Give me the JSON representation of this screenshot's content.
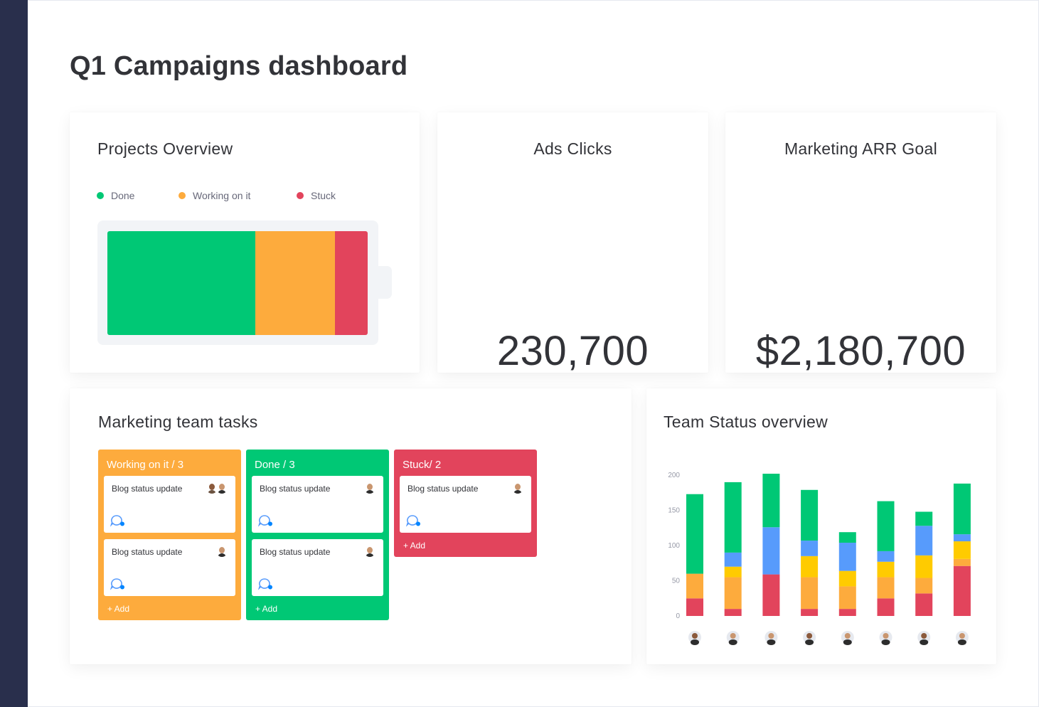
{
  "page": {
    "title": "Q1 Campaigns dashboard"
  },
  "projects_overview": {
    "title": "Projects Overview",
    "legend": [
      {
        "label": "Done",
        "color": "#00c875"
      },
      {
        "label": "Working on it",
        "color": "#fdab3d"
      },
      {
        "label": "Stuck",
        "color": "#e2445c"
      }
    ],
    "battery_shares": [
      {
        "status": "Done",
        "share": 0.567,
        "color": "#00c875"
      },
      {
        "status": "Working on it",
        "share": 0.306,
        "color": "#fdab3d"
      },
      {
        "status": "Stuck",
        "share": 0.127,
        "color": "#e2445c"
      }
    ]
  },
  "ads_clicks": {
    "title": "Ads Clicks",
    "value": "230,700"
  },
  "arr_goal": {
    "title": "Marketing ARR Goal",
    "value": "$2,180,700"
  },
  "tasks": {
    "title": "Marketing team tasks",
    "columns": [
      {
        "label": "Working on it / 3",
        "color": "#fdab3d",
        "items": [
          {
            "title": "Blog status update",
            "avatars": [
              "person-avatar",
              "person-avatar"
            ]
          },
          {
            "title": "Blog status update",
            "avatars": [
              "person-avatar"
            ]
          }
        ],
        "add_label": "+ Add"
      },
      {
        "label": "Done / 3",
        "color": "#00c875",
        "items": [
          {
            "title": "Blog status update",
            "avatars": [
              "person-avatar"
            ]
          },
          {
            "title": "Blog status update",
            "avatars": [
              "person-avatar"
            ]
          }
        ],
        "add_label": "+ Add"
      },
      {
        "label": "Stuck/ 2",
        "color": "#e2445c",
        "items": [
          {
            "title": "Blog status update",
            "avatars": [
              "person-avatar"
            ]
          }
        ],
        "add_label": "+ Add"
      }
    ]
  },
  "team_status": {
    "title": "Team Status overview"
  },
  "chart_data": {
    "type": "bar",
    "stacked": true,
    "title": "Team Status overview",
    "xlabel": "",
    "ylabel": "",
    "ylim": [
      0,
      200
    ],
    "yticks": [
      0,
      50,
      100,
      150,
      200
    ],
    "grid": false,
    "categories": [
      "",
      "",
      "",
      "",
      "",
      "",
      "",
      ""
    ],
    "x_icons": [
      "person-avatar",
      "person-avatar",
      "person-avatar",
      "person-avatar",
      "person-avatar",
      "person-avatar",
      "person-avatar",
      "person-avatar"
    ],
    "series": [
      {
        "color": "#e2445c",
        "values": [
          25,
          10,
          59,
          10,
          10,
          25,
          32,
          71
        ]
      },
      {
        "color": "#fdab3d",
        "values": [
          35,
          45,
          0,
          45,
          32,
          30,
          22,
          10
        ]
      },
      {
        "color": "#ffcb00",
        "values": [
          0,
          15,
          0,
          30,
          22,
          22,
          32,
          25
        ]
      },
      {
        "color": "#579bfc",
        "values": [
          0,
          20,
          67,
          22,
          40,
          15,
          42,
          10
        ]
      },
      {
        "color": "#00c875",
        "values": [
          113,
          100,
          76,
          72,
          15,
          71,
          20,
          72
        ]
      }
    ]
  }
}
